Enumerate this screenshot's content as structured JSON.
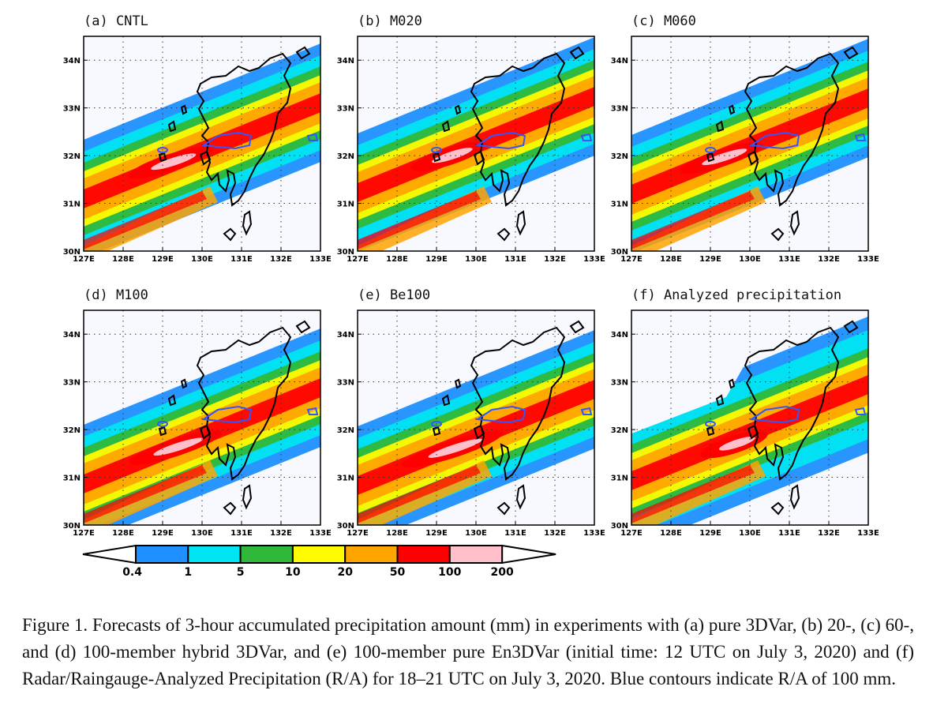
{
  "panels": [
    {
      "label": "(a) CNTL"
    },
    {
      "label": "(b) M020"
    },
    {
      "label": "(c) M060"
    },
    {
      "label": "(d) M100"
    },
    {
      "label": "(e) Be100"
    },
    {
      "label": "(f) Analyzed precipitation"
    }
  ],
  "axes": {
    "lon_ticks": [
      "127E",
      "128E",
      "129E",
      "130E",
      "131E",
      "132E",
      "133E"
    ],
    "lat_ticks": [
      "30N",
      "31N",
      "32N",
      "33N",
      "34N"
    ],
    "lon_range": [
      127,
      133
    ],
    "lat_range": [
      30,
      34.5
    ],
    "grid": "dotted"
  },
  "colorbar": {
    "ticks": [
      "0.4",
      "1",
      "5",
      "10",
      "20",
      "50",
      "100",
      "200"
    ],
    "colors": [
      "#1e90ff",
      "#00e5f2",
      "#2fb83a",
      "#fffb00",
      "#ffa500",
      "#ff0000",
      "#ffc0cb"
    ]
  },
  "colors": {
    "background": "#f8f8ff",
    "contour": "#3355ff",
    "coastline": "#000000"
  },
  "caption": "Figure 1. Forecasts of 3-hour accumulated precipitation amount (mm) in experiments with (a) pure 3DVar, (b) 20-, (c) 60-, and (d) 100-member hybrid 3DVar, and (e) 100-member pure En3DVar (initial time: 12 UTC on July 3, 2020) and (f) Radar/Raingauge-Analyzed Precipitation (R/A) for 18–21 UTC on July 3, 2020. Blue contours indicate R/A of 100 mm."
}
